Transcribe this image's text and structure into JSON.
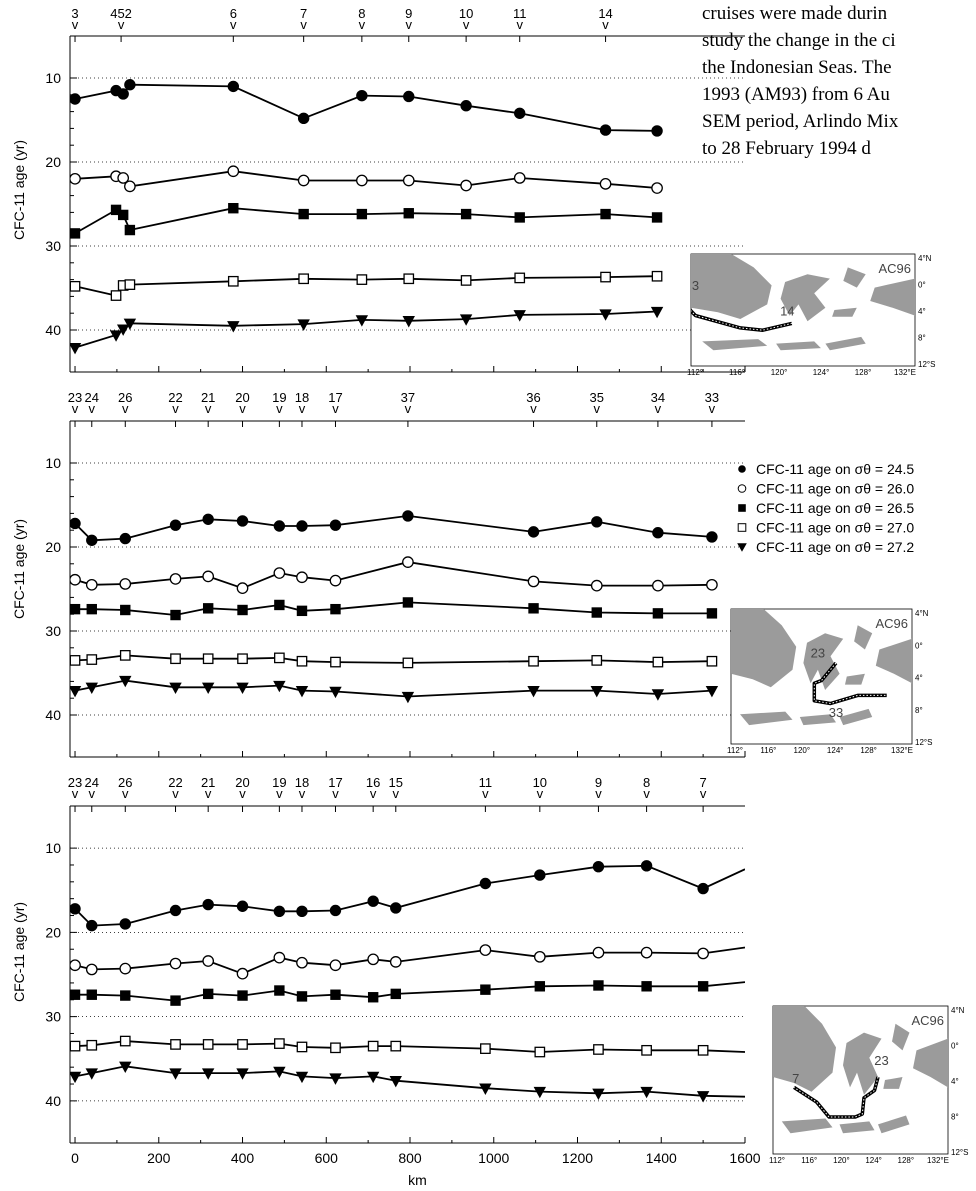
{
  "body_text": [
    "cruises were made durin",
    "study the change in the ci",
    "the Indonesian Seas. The",
    "1993 (AM93) from 6 Au",
    "SEM period, Arlindo Mix",
    "to 28 February 1994 d"
  ],
  "legend": [
    {
      "label": "CFC-11 age on σθ = 24.5",
      "marker": "circle-filled"
    },
    {
      "label": "CFC-11 age on σθ = 26.0",
      "marker": "circle-open"
    },
    {
      "label": "CFC-11 age on σθ = 26.5",
      "marker": "square-filled"
    },
    {
      "label": "CFC-11 age on σθ = 27.0",
      "marker": "square-open"
    },
    {
      "label": "CFC-11 age on σθ = 27.2",
      "marker": "triangle-down-filled"
    }
  ],
  "chart_data": [
    {
      "type": "line",
      "ylabel": "CFC-11 age (yr)",
      "y_inverted": true,
      "ylim": [
        45,
        5
      ],
      "xlim": [
        -12,
        1600
      ],
      "y_ticks": [
        10,
        20,
        30,
        40
      ],
      "x_ticks": [],
      "xlabel": "",
      "grid": "horizontal dotted",
      "stations": [
        {
          "label": "3",
          "x": 0
        },
        {
          "label": "452",
          "x": 110
        },
        {
          "label": "6",
          "x": 378
        },
        {
          "label": "7",
          "x": 546
        },
        {
          "label": "8",
          "x": 685
        },
        {
          "label": "9",
          "x": 797
        },
        {
          "label": "10",
          "x": 934
        },
        {
          "label": "11",
          "x": 1062
        },
        {
          "label": "14",
          "x": 1267
        }
      ],
      "series": [
        {
          "marker": "circle-filled",
          "x": [
            0,
            98,
            115,
            131,
            378,
            546,
            685,
            797,
            934,
            1062,
            1267,
            1390
          ],
          "y": [
            12.5,
            11.5,
            11.9,
            10.8,
            11,
            14.8,
            12.1,
            12.2,
            13.3,
            14.2,
            16.2,
            16.3
          ]
        },
        {
          "marker": "circle-open",
          "x": [
            0,
            98,
            115,
            131,
            378,
            546,
            685,
            797,
            934,
            1062,
            1267,
            1390
          ],
          "y": [
            22,
            21.7,
            21.9,
            22.9,
            21.1,
            22.2,
            22.2,
            22.2,
            22.8,
            21.9,
            22.6,
            23.1
          ]
        },
        {
          "marker": "square-filled",
          "x": [
            0,
            98,
            115,
            131,
            378,
            546,
            685,
            797,
            934,
            1062,
            1267,
            1390
          ],
          "y": [
            28.5,
            25.7,
            26.3,
            28.1,
            25.5,
            26.2,
            26.2,
            26.1,
            26.2,
            26.6,
            26.2,
            26.6
          ]
        },
        {
          "marker": "square-open",
          "x": [
            0,
            98,
            115,
            131,
            378,
            546,
            685,
            797,
            934,
            1062,
            1267,
            1390
          ],
          "y": [
            34.8,
            35.9,
            34.7,
            34.6,
            34.2,
            33.9,
            34,
            33.9,
            34.1,
            33.8,
            33.7,
            33.6
          ]
        },
        {
          "marker": "triangle-down-filled",
          "x": [
            0,
            98,
            115,
            131,
            378,
            546,
            685,
            797,
            934,
            1062,
            1267,
            1390
          ],
          "y": [
            42.1,
            40.6,
            39.9,
            39.2,
            39.5,
            39.3,
            38.8,
            38.9,
            38.7,
            38.2,
            38.1,
            37.8
          ]
        }
      ],
      "inset_map": {
        "label": "AC96",
        "track_start": "3",
        "track_end": "14",
        "lon_labels": [
          "112°",
          "116°",
          "120°",
          "124°",
          "128°",
          "132°E"
        ],
        "lat_labels": [
          "4°N",
          "0°",
          "4°",
          "8°",
          "12°S"
        ]
      }
    },
    {
      "type": "line",
      "ylabel": "CFC-11 age (yr)",
      "y_inverted": true,
      "ylim": [
        45,
        5
      ],
      "xlim": [
        -12,
        1600
      ],
      "y_ticks": [
        10,
        20,
        30,
        40
      ],
      "x_ticks": [],
      "xlabel": "",
      "grid": "horizontal dotted",
      "stations": [
        {
          "label": "23",
          "x": 0
        },
        {
          "label": "24",
          "x": 40
        },
        {
          "label": "26",
          "x": 120
        },
        {
          "label": "22",
          "x": 240
        },
        {
          "label": "21",
          "x": 318
        },
        {
          "label": "20",
          "x": 400
        },
        {
          "label": "19",
          "x": 488
        },
        {
          "label": "18",
          "x": 542
        },
        {
          "label": "17",
          "x": 622
        },
        {
          "label": "37",
          "x": 795
        },
        {
          "label": "36",
          "x": 1095
        },
        {
          "label": "35",
          "x": 1246
        },
        {
          "label": "34",
          "x": 1392
        },
        {
          "label": "33",
          "x": 1521
        }
      ],
      "series": [
        {
          "marker": "circle-filled",
          "x": [
            0,
            40,
            120,
            240,
            318,
            400,
            488,
            542,
            622,
            795,
            1095,
            1246,
            1392,
            1521
          ],
          "y": [
            17.2,
            19.2,
            19,
            17.4,
            16.7,
            16.9,
            17.5,
            17.5,
            17.4,
            16.3,
            18.2,
            17,
            18.3,
            18.8
          ]
        },
        {
          "marker": "circle-open",
          "x": [
            0,
            40,
            120,
            240,
            318,
            400,
            488,
            542,
            622,
            795,
            1095,
            1246,
            1392,
            1521
          ],
          "y": [
            23.9,
            24.5,
            24.4,
            23.8,
            23.5,
            24.9,
            23.1,
            23.6,
            24,
            21.8,
            24.1,
            24.6,
            24.6,
            24.5
          ]
        },
        {
          "marker": "square-filled",
          "x": [
            0,
            40,
            120,
            240,
            318,
            400,
            488,
            542,
            622,
            795,
            1095,
            1246,
            1392,
            1521
          ],
          "y": [
            27.4,
            27.4,
            27.5,
            28.1,
            27.3,
            27.5,
            26.9,
            27.6,
            27.4,
            26.6,
            27.3,
            27.8,
            27.9,
            27.9
          ]
        },
        {
          "marker": "square-open",
          "x": [
            0,
            40,
            120,
            240,
            318,
            400,
            488,
            542,
            622,
            795,
            1095,
            1246,
            1392,
            1521
          ],
          "y": [
            33.5,
            33.4,
            32.9,
            33.3,
            33.3,
            33.3,
            33.2,
            33.6,
            33.7,
            33.8,
            33.6,
            33.5,
            33.7,
            33.6
          ]
        },
        {
          "marker": "triangle-down-filled",
          "x": [
            0,
            40,
            120,
            240,
            318,
            400,
            488,
            542,
            622,
            795,
            1095,
            1246,
            1392,
            1521
          ],
          "y": [
            37.1,
            36.7,
            35.9,
            36.7,
            36.7,
            36.7,
            36.5,
            37.1,
            37.2,
            37.8,
            37.1,
            37.1,
            37.5,
            37.1
          ]
        }
      ],
      "inset_map": {
        "label": "AC96",
        "track_start": "23",
        "track_end": "33",
        "lon_labels": [
          "112°",
          "116°",
          "120°",
          "124°",
          "128°",
          "132°E"
        ],
        "lat_labels": [
          "4°N",
          "0°",
          "4°",
          "8°",
          "12°S"
        ]
      }
    },
    {
      "type": "line",
      "ylabel": "CFC-11 age (yr)",
      "y_inverted": true,
      "ylim": [
        45,
        5
      ],
      "xlim": [
        -12,
        1600
      ],
      "y_ticks": [
        10,
        20,
        30,
        40
      ],
      "x_ticks": [
        0,
        200,
        400,
        600,
        800,
        1000,
        1200,
        1400,
        1600
      ],
      "xlabel": "km",
      "grid": "horizontal dotted",
      "stations": [
        {
          "label": "23",
          "x": 0
        },
        {
          "label": "24",
          "x": 40
        },
        {
          "label": "26",
          "x": 120
        },
        {
          "label": "22",
          "x": 240
        },
        {
          "label": "21",
          "x": 318
        },
        {
          "label": "20",
          "x": 400
        },
        {
          "label": "19",
          "x": 488
        },
        {
          "label": "18",
          "x": 542
        },
        {
          "label": "17",
          "x": 622
        },
        {
          "label": "16",
          "x": 712
        },
        {
          "label": "15",
          "x": 766
        },
        {
          "label": "11",
          "x": 980
        },
        {
          "label": "10",
          "x": 1110
        },
        {
          "label": "9",
          "x": 1250
        },
        {
          "label": "8",
          "x": 1365
        },
        {
          "label": "7",
          "x": 1500
        }
      ],
      "series": [
        {
          "marker": "circle-filled",
          "x": [
            0,
            40,
            120,
            240,
            318,
            400,
            488,
            542,
            622,
            712,
            766,
            980,
            1110,
            1250,
            1365,
            1500,
            1600
          ],
          "y": [
            17.2,
            19.2,
            19,
            17.4,
            16.7,
            16.9,
            17.5,
            17.5,
            17.4,
            16.3,
            17.1,
            14.2,
            13.2,
            12.2,
            12.1,
            14.8,
            12.5
          ]
        },
        {
          "marker": "circle-open",
          "x": [
            0,
            40,
            120,
            240,
            318,
            400,
            488,
            542,
            622,
            712,
            766,
            980,
            1110,
            1250,
            1365,
            1500,
            1600
          ],
          "y": [
            23.9,
            24.4,
            24.3,
            23.7,
            23.4,
            24.9,
            23,
            23.6,
            23.9,
            23.2,
            23.5,
            22.1,
            22.9,
            22.4,
            22.4,
            22.5,
            21.8
          ]
        },
        {
          "marker": "square-filled",
          "x": [
            0,
            40,
            120,
            240,
            318,
            400,
            488,
            542,
            622,
            712,
            766,
            980,
            1110,
            1250,
            1365,
            1500,
            1600
          ],
          "y": [
            27.4,
            27.4,
            27.5,
            28.1,
            27.3,
            27.5,
            26.9,
            27.6,
            27.4,
            27.7,
            27.3,
            26.8,
            26.4,
            26.3,
            26.4,
            26.4,
            25.9
          ]
        },
        {
          "marker": "square-open",
          "x": [
            0,
            40,
            120,
            240,
            318,
            400,
            488,
            542,
            622,
            712,
            766,
            980,
            1110,
            1250,
            1365,
            1500,
            1600
          ],
          "y": [
            33.5,
            33.4,
            32.9,
            33.3,
            33.3,
            33.3,
            33.2,
            33.6,
            33.7,
            33.5,
            33.5,
            33.8,
            34.2,
            33.9,
            34,
            34,
            34.2
          ]
        },
        {
          "marker": "triangle-down-filled",
          "x": [
            0,
            40,
            120,
            240,
            318,
            400,
            488,
            542,
            622,
            712,
            766,
            980,
            1110,
            1250,
            1365,
            1500,
            1600
          ],
          "y": [
            37.1,
            36.7,
            35.9,
            36.7,
            36.7,
            36.7,
            36.5,
            37.1,
            37.3,
            37.1,
            37.6,
            38.5,
            38.9,
            39.1,
            38.9,
            39.4,
            39.5
          ]
        }
      ],
      "inset_map": {
        "label": "AC96",
        "track_start": "7",
        "track_end": "23",
        "lon_labels": [
          "112°",
          "116°",
          "120°",
          "124°",
          "128°",
          "132°E"
        ],
        "lat_labels": [
          "4°N",
          "0°",
          "4°",
          "8°",
          "12°S"
        ]
      }
    }
  ]
}
